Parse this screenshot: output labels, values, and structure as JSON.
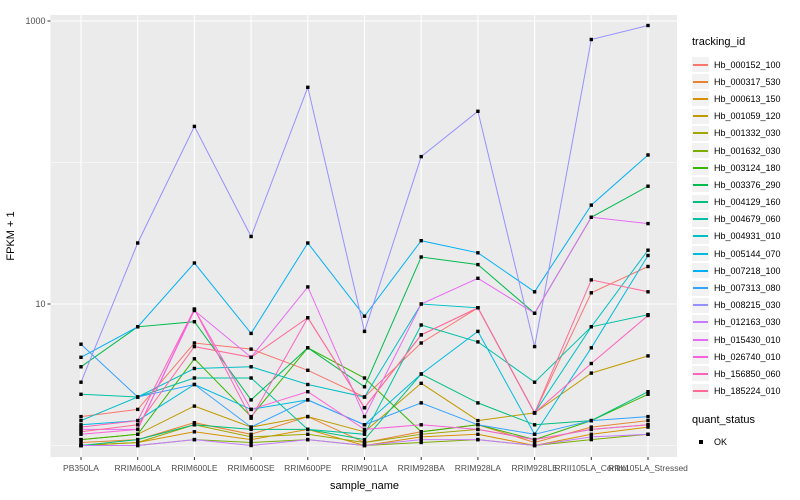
{
  "figure": {
    "background": "#FFFFFF",
    "panel_bg": "#EBEBEB",
    "grid_color": "#FFFFFF",
    "tick_color": "#333333",
    "tick_label_color": "#4D4D4D",
    "axis_title_color": "#000000",
    "point_color": "#000000"
  },
  "chart_data": {
    "type": "line",
    "title": "",
    "xlabel": "sample_name",
    "ylabel": "FPKM + 1",
    "y_scale": "log10",
    "ylim": [
      0.85,
      1100
    ],
    "y_major_ticks": [
      "10",
      "1000"
    ],
    "y_major_values": [
      10,
      1000
    ],
    "y_minor_values": [
      1,
      100
    ],
    "grid": true,
    "marker": "black-square",
    "legend": {
      "title": "tracking_id",
      "position": "right"
    },
    "quant_legend": {
      "title": "quant_status",
      "items": [
        {
          "label": "OK"
        }
      ]
    },
    "categories": [
      "PB350LA",
      "RRIM600LA",
      "RRIM600LE",
      "RRIM600SE",
      "RRIM600PE",
      "RRIM901LA",
      "RRIM928BA",
      "RRIM928LA",
      "RRIM928LE",
      "RRII105LA_Control",
      "RRII105LA_Stressed"
    ],
    "series": [
      {
        "name": "Hb_000152_100",
        "color": "#F8766D",
        "values": [
          1.6,
          1.8,
          5.3,
          4.8,
          3.4,
          2.2,
          5.3,
          9.4,
          1.7,
          12.0,
          18.4
        ]
      },
      {
        "name": "Hb_000317_530",
        "color": "#EA8331",
        "values": [
          1.05,
          1.1,
          1.45,
          1.2,
          1.6,
          1.05,
          1.25,
          1.4,
          1.05,
          1.35,
          1.5
        ]
      },
      {
        "name": "Hb_000613_150",
        "color": "#D89000",
        "values": [
          1.0,
          1.05,
          1.25,
          1.1,
          1.3,
          1.0,
          1.15,
          1.2,
          1.0,
          1.2,
          1.35
        ]
      },
      {
        "name": "Hb_001059_120",
        "color": "#C09B00",
        "values": [
          1.1,
          1.2,
          1.9,
          1.35,
          1.6,
          1.25,
          2.75,
          1.5,
          1.7,
          3.25,
          4.3
        ]
      },
      {
        "name": "Hb_001332_030",
        "color": "#A3A500",
        "values": [
          1.0,
          1.05,
          1.4,
          1.15,
          1.2,
          1.05,
          1.2,
          1.3,
          1.1,
          1.3,
          1.4
        ]
      },
      {
        "name": "Hb_001632_030",
        "color": "#7CAE00",
        "values": [
          1.0,
          1.0,
          1.1,
          1.05,
          1.1,
          1.0,
          1.05,
          1.1,
          1.0,
          1.1,
          1.2
        ]
      },
      {
        "name": "Hb_003124_180",
        "color": "#39B600",
        "values": [
          1.1,
          1.2,
          4.1,
          1.6,
          4.9,
          3.0,
          1.25,
          1.4,
          1.1,
          1.5,
          2.3
        ]
      },
      {
        "name": "Hb_003376_290",
        "color": "#00BB4E",
        "values": [
          3.6,
          6.9,
          7.5,
          2.1,
          4.9,
          2.6,
          21.5,
          19.0,
          8.6,
          41.0,
          68.0
        ]
      },
      {
        "name": "Hb_004129_160",
        "color": "#00BF7D",
        "values": [
          1.0,
          1.1,
          1.4,
          1.3,
          1.3,
          1.1,
          3.2,
          2.0,
          1.4,
          1.5,
          2.4
        ]
      },
      {
        "name": "Hb_004679_060",
        "color": "#00C1A3",
        "values": [
          2.3,
          2.2,
          3.0,
          3.0,
          1.3,
          1.2,
          7.1,
          5.4,
          2.8,
          6.9,
          8.4
        ]
      },
      {
        "name": "Hb_004931_010",
        "color": "#00BFC4",
        "values": [
          1.5,
          2.2,
          3.5,
          3.6,
          2.7,
          2.2,
          10.0,
          9.4,
          1.7,
          6.9,
          24.0
        ]
      },
      {
        "name": "Hb_005144_070",
        "color": "#00BAE0",
        "values": [
          1.4,
          1.5,
          2.7,
          1.8,
          2.1,
          1.4,
          3.2,
          6.4,
          1.2,
          4.9,
          22.0
        ]
      },
      {
        "name": "Hb_007218_100",
        "color": "#00B0F6",
        "values": [
          4.2,
          6.9,
          19.5,
          6.2,
          27.0,
          8.2,
          28.0,
          23.0,
          12.2,
          50.0,
          113.0
        ]
      },
      {
        "name": "Hb_007313_080",
        "color": "#35A2FF",
        "values": [
          5.2,
          2.2,
          2.7,
          1.35,
          2.1,
          1.4,
          2.0,
          1.4,
          1.2,
          1.5,
          1.6
        ]
      },
      {
        "name": "Hb_008215_030",
        "color": "#9590FF",
        "values": [
          2.8,
          27.0,
          180.0,
          30.0,
          340.0,
          6.4,
          110.0,
          230.0,
          5.0,
          740.0,
          930.0
        ]
      },
      {
        "name": "Hb_012163_030",
        "color": "#C77CFF",
        "values": [
          1.0,
          1.0,
          1.1,
          1.0,
          1.1,
          1.0,
          1.1,
          1.1,
          1.0,
          1.15,
          1.2
        ]
      },
      {
        "name": "Hb_015430_010",
        "color": "#E76BF3",
        "values": [
          1.3,
          1.3,
          9.0,
          4.2,
          13.2,
          1.6,
          10.0,
          15.2,
          8.6,
          41.0,
          37.0
        ]
      },
      {
        "name": "Hb_026740_010",
        "color": "#FA62DB",
        "values": [
          1.2,
          1.3,
          9.2,
          1.8,
          2.4,
          1.3,
          1.4,
          1.3,
          1.1,
          1.3,
          1.4
        ]
      },
      {
        "name": "Hb_156850_060",
        "color": "#FF62BC",
        "values": [
          1.35,
          1.5,
          9.2,
          1.56,
          8.0,
          1.85,
          6.05,
          9.4,
          1.7,
          3.8,
          8.3
        ]
      },
      {
        "name": "Hb_185224_010",
        "color": "#FF6A98",
        "values": [
          1.25,
          1.4,
          5.0,
          4.2,
          8.0,
          1.85,
          6.05,
          9.4,
          1.7,
          14.8,
          12.2
        ]
      }
    ]
  }
}
